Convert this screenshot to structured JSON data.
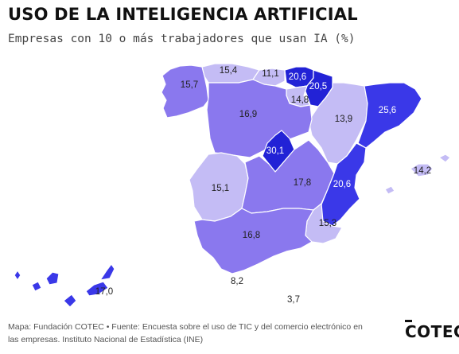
{
  "header": {
    "title": "USO DE LA INTELIGENCIA ARTIFICIAL",
    "subtitle": "Empresas con 10 o más trabajadores que usan IA (%)"
  },
  "colors": {
    "very_high": "#2222d6",
    "high": "#3a38e8",
    "medium": "#8a78ee",
    "low": "#c4bcf5",
    "label_light": "#ffffff",
    "label_dark": "#222222"
  },
  "regions": [
    {
      "name": "galicia",
      "value": "15,7"
    },
    {
      "name": "asturias",
      "value": "15,4"
    },
    {
      "name": "cantabria",
      "value": "11,1"
    },
    {
      "name": "pais-vasco",
      "value": "20,6"
    },
    {
      "name": "navarra",
      "value": "20,5"
    },
    {
      "name": "la-rioja",
      "value": "14,8"
    },
    {
      "name": "aragon",
      "value": "13,9"
    },
    {
      "name": "cataluna",
      "value": "25,6"
    },
    {
      "name": "castilla-leon",
      "value": "16,9"
    },
    {
      "name": "madrid",
      "value": "30,1"
    },
    {
      "name": "extremadura",
      "value": "15,1"
    },
    {
      "name": "castilla-la-mancha",
      "value": "17,8"
    },
    {
      "name": "valencia",
      "value": "20,6"
    },
    {
      "name": "baleares",
      "value": "14,2"
    },
    {
      "name": "murcia",
      "value": "15,3"
    },
    {
      "name": "andalucia",
      "value": "16,8"
    },
    {
      "name": "ceuta",
      "value": "8,2"
    },
    {
      "name": "melilla",
      "value": "3,7"
    },
    {
      "name": "canarias",
      "value": "17,0"
    }
  ],
  "footer": {
    "source": "Mapa: Fundación COTEC • Fuente: Encuesta sobre el uso de TIC y del comercio electrónico en las empresas. Instituto Nacional de Estadística (INE)",
    "logo": "COTEC"
  }
}
